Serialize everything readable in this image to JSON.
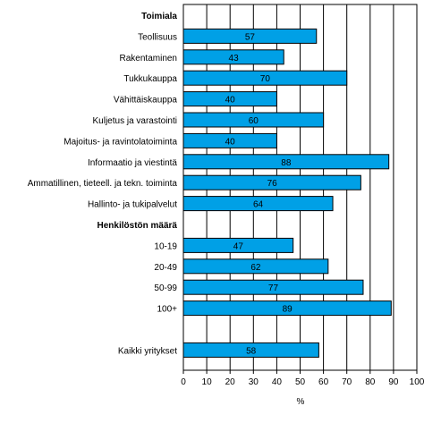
{
  "chart_data": {
    "type": "bar",
    "orientation": "horizontal",
    "title": "",
    "xlabel": "%",
    "ylabel": "",
    "xlim": [
      0,
      100
    ],
    "xticks": [
      "0",
      "10",
      "20",
      "30",
      "40",
      "50",
      "60",
      "70",
      "80",
      "90",
      "100"
    ],
    "grid": true,
    "legend": "none",
    "bar_color": "#00a0e6",
    "groups": [
      {
        "heading": "Toimiala",
        "categories": [
          "Teollisuus",
          "Rakentaminen",
          "Tukkukauppa",
          "Vähittäiskauppa",
          "Kuljetus ja varastointi",
          "Majoitus- ja ravintolatoiminta",
          "Informaatio ja viestintä",
          "Ammatillinen, tieteell. ja tekn. toiminta",
          "Hallinto- ja tukipalvelut"
        ],
        "values": [
          57,
          43,
          70,
          40,
          60,
          40,
          88,
          76,
          64
        ]
      },
      {
        "heading": "Henkilöstön määrä",
        "categories": [
          "10-19",
          "20-49",
          "50-99",
          "100+"
        ],
        "values": [
          47,
          62,
          77,
          89
        ]
      },
      {
        "heading": "",
        "categories": [
          "Kaikki yritykset"
        ],
        "values": [
          58
        ]
      }
    ]
  }
}
